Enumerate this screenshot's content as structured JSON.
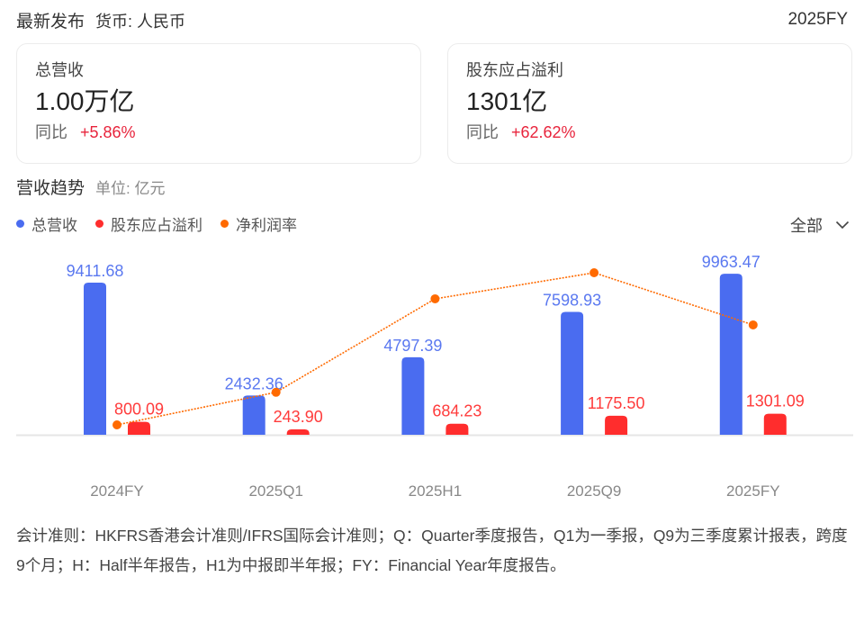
{
  "header": {
    "title": "最新发布",
    "currency": "货币: 人民币",
    "period": "2025FY"
  },
  "cards": [
    {
      "label": "总营收",
      "value": "1.00万亿",
      "yoy_label": "同比",
      "yoy_value": "+5.86%"
    },
    {
      "label": "股东应占溢利",
      "value": "1301亿",
      "yoy_label": "同比",
      "yoy_value": "+62.62%"
    }
  ],
  "section": {
    "title": "营收趋势",
    "unit": "单位: 亿元"
  },
  "legend": [
    {
      "label": "总营收",
      "color": "#4a6cf0"
    },
    {
      "label": "股东应占溢利",
      "color": "#ff2d2d"
    },
    {
      "label": "净利润率",
      "color": "#ff6a00"
    }
  ],
  "filter": {
    "selected": "全部",
    "icon": "chevron-down-icon"
  },
  "chart_data": {
    "type": "bar",
    "title": "营收趋势",
    "subtitle": "单位: 亿元",
    "xlabel": "",
    "ylabel": "亿元",
    "categories": [
      "2024FY",
      "2025Q1",
      "2025H1",
      "2025Q9",
      "2025FY"
    ],
    "series": [
      {
        "name": "总营收",
        "type": "bar",
        "color": "#4a6cf0",
        "values": [
          9411.68,
          2432.36,
          4797.39,
          7598.93,
          9963.47
        ]
      },
      {
        "name": "股东应占溢利",
        "type": "bar",
        "color": "#ff2d2d",
        "values": [
          800.09,
          243.9,
          684.23,
          1175.5,
          1301.09
        ]
      },
      {
        "name": "净利润率",
        "type": "line",
        "color": "#ff6a00",
        "line_style": "dotted",
        "values": [
          8.5,
          10.0,
          14.3,
          15.5,
          13.1
        ],
        "note": "values estimated from marker positions; no axis labels shown"
      }
    ],
    "grid": false,
    "legend_position": "top-left"
  },
  "footnote": "会计准则：HKFRS香港会计准则/IFRS国际会计准则；Q：Quarter季度报告，Q1为一季报，Q9为三季度累计报表，跨度9个月；H：Half半年报告，H1为中报即半年报；FY：Financial Year年度报告。"
}
